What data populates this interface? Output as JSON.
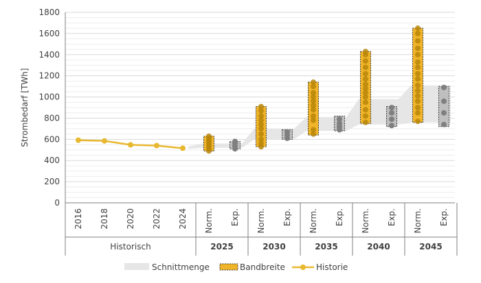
{
  "chart_data": {
    "type": "range-dot",
    "ylabel": "Strombedarf [TWh]",
    "ylim": [
      0,
      1800
    ],
    "yticks": [
      0,
      200,
      400,
      600,
      800,
      1000,
      1200,
      1400,
      1600,
      1800
    ],
    "grid": true,
    "colors": {
      "historie": "#E8B830",
      "bandbreite_fill": "#F0B429",
      "bandbreite_border": "#3a3a3a",
      "norm_dots": "#B8860B",
      "exp_fill": "#BFBFBF",
      "exp_dots": "#7F7F7F",
      "schnittmenge": "#E6E6E6",
      "axis": "#7F7F7F"
    },
    "historisch": {
      "group_label": "Historisch",
      "years": [
        "2016",
        "2018",
        "2020",
        "2022",
        "2024"
      ],
      "values": [
        592,
        585,
        548,
        541,
        516
      ]
    },
    "groups": [
      {
        "year": "2025",
        "norm_label": "Norm.",
        "exp_label": "Exp.",
        "norm": {
          "min": 490,
          "max": 630,
          "points": [
            490,
            510,
            530,
            550,
            570,
            590,
            610,
            630
          ]
        },
        "exp": {
          "min": 510,
          "max": 580,
          "points": [
            510,
            535,
            560,
            580
          ]
        },
        "schnitt": [
          560,
          520
        ]
      },
      {
        "year": "2030",
        "norm_label": "Norm.",
        "exp_label": "Exp.",
        "norm": {
          "min": 530,
          "max": 910,
          "points": [
            530,
            560,
            600,
            650,
            700,
            740,
            780,
            820,
            870,
            910
          ]
        },
        "exp": {
          "min": 600,
          "max": 690,
          "points": [
            610,
            640,
            670
          ]
        },
        "schnitt": [
          700,
          600
        ]
      },
      {
        "year": "2035",
        "norm_label": "Norm.",
        "exp_label": "Exp.",
        "norm": {
          "min": 640,
          "max": 1140,
          "points": [
            650,
            690,
            780,
            820,
            880,
            920,
            960,
            1000,
            1040,
            1100,
            1140
          ]
        },
        "exp": {
          "min": 680,
          "max": 820,
          "points": [
            690,
            720,
            750,
            790
          ]
        },
        "schnitt": [
          810,
          680
        ]
      },
      {
        "year": "2040",
        "norm_label": "Norm.",
        "exp_label": "Exp.",
        "norm": {
          "min": 750,
          "max": 1430,
          "points": [
            760,
            820,
            880,
            950,
            1000,
            1040,
            1080,
            1120,
            1170,
            1220,
            1280,
            1340,
            1400,
            1430
          ]
        },
        "exp": {
          "min": 720,
          "max": 910,
          "points": [
            730,
            790,
            850,
            900
          ]
        },
        "schnitt": [
          980,
          740
        ]
      },
      {
        "year": "2045",
        "norm_label": "Norm.",
        "exp_label": "Exp.",
        "norm": {
          "min": 760,
          "max": 1650,
          "points": [
            770,
            850,
            900,
            960,
            1010,
            1060,
            1110,
            1170,
            1220,
            1280,
            1330,
            1400,
            1460,
            1530,
            1600,
            1650
          ]
        },
        "exp": {
          "min": 720,
          "max": 1100,
          "points": [
            740,
            850,
            960,
            1090
          ]
        },
        "schnitt": [
          1110,
          760
        ]
      }
    ],
    "legend": {
      "position": "bottom",
      "items": [
        "Schnittmenge",
        "Bandbreite",
        "Historie"
      ]
    }
  }
}
